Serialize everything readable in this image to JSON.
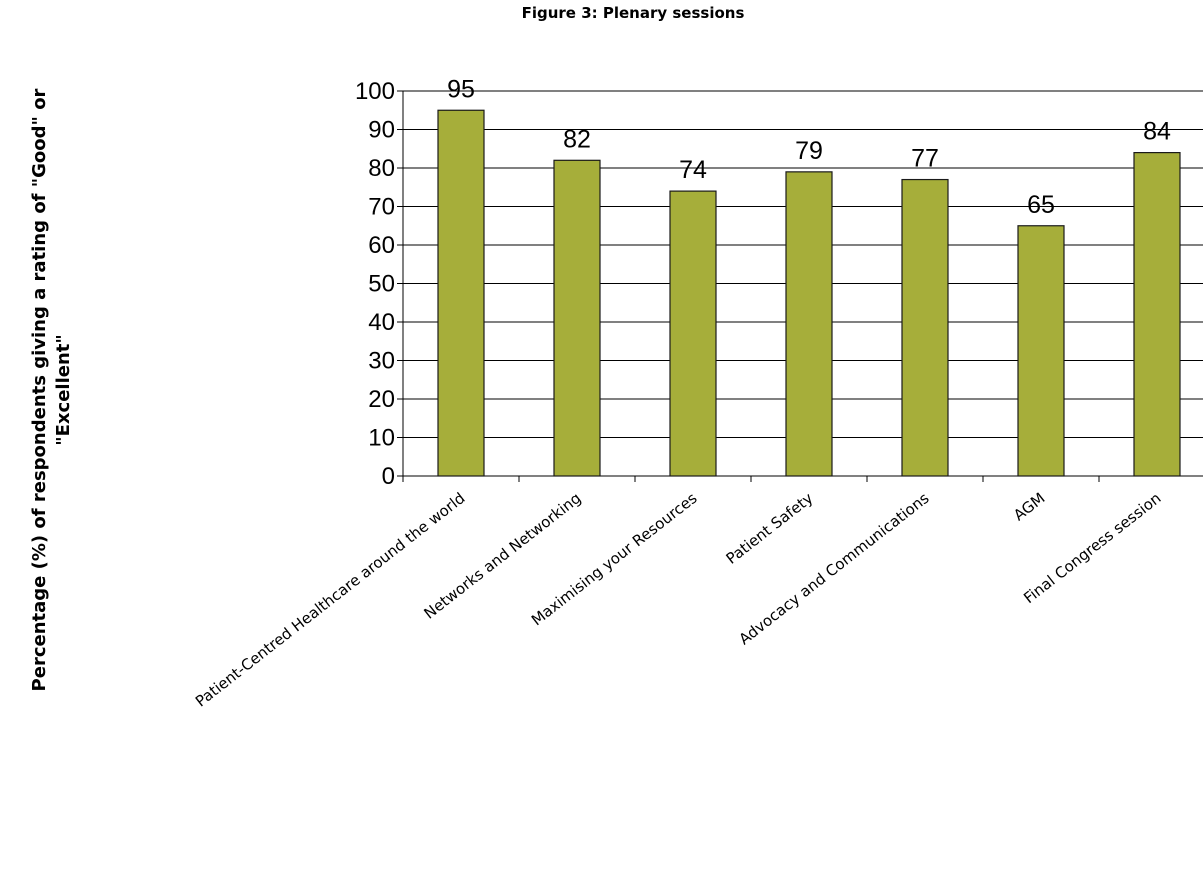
{
  "chart_data": {
    "type": "bar",
    "title": "Figure 3: Plenary sessions",
    "ylabel_lines": [
      "Percentage (%) of respondents giving a rating of \"Good\" or",
      "\"Excellent\""
    ],
    "xlabel": "",
    "categories": [
      "Patient-Centred Healthcare around the world",
      "Networks and Networking",
      "Maximising your Resources",
      "Patient Safety",
      "Advocacy and Communications",
      "AGM",
      "Final Congress session"
    ],
    "values": [
      95,
      82,
      74,
      79,
      77,
      65,
      84
    ],
    "ylim": [
      0,
      100
    ],
    "yticks": [
      0,
      10,
      20,
      30,
      40,
      50,
      60,
      70,
      80,
      90,
      100
    ],
    "grid": true,
    "legend": "none",
    "bar_color": "#a6ae3a",
    "bar_edge_color": "#1a1a1a"
  }
}
